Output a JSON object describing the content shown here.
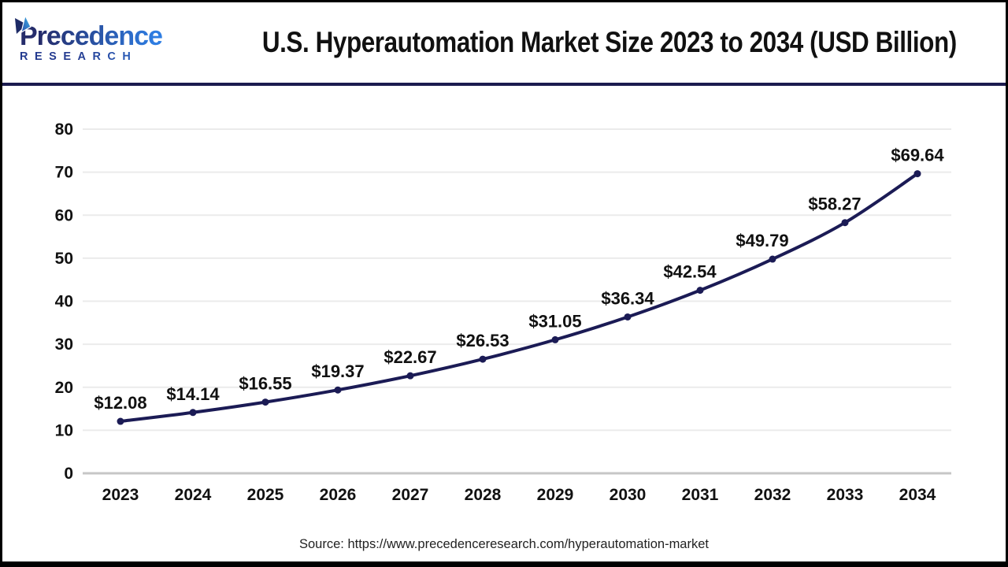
{
  "logo": {
    "brand": "Precedence",
    "subtitle": "RESEARCH"
  },
  "header": {
    "title": "U.S. Hyperautomation Market Size 2023 to 2034 (USD Billion)"
  },
  "source": {
    "text": "Source: https://www.precedenceresearch.com/hyperautomation-market"
  },
  "colors": {
    "line": "#1b1b55",
    "divider": "#1b1b4f",
    "grid": "#ebebeb",
    "axis": "#c6c6c6",
    "label": "#111111",
    "logo_gradient_start": "#252c6b",
    "logo_gradient_end": "#2e7de2"
  },
  "chart_data": {
    "type": "line",
    "title": "U.S. Hyperautomation Market Size 2023 to 2034 (USD Billion)",
    "unit": "USD Billion",
    "categories": [
      "2023",
      "2024",
      "2025",
      "2026",
      "2027",
      "2028",
      "2029",
      "2030",
      "2031",
      "2032",
      "2033",
      "2034"
    ],
    "values": [
      12.08,
      14.14,
      16.55,
      19.37,
      22.67,
      26.53,
      31.05,
      36.34,
      42.54,
      49.79,
      58.27,
      69.64
    ],
    "point_labels": [
      "$12.08",
      "$14.14",
      "$16.55",
      "$19.37",
      "$22.67",
      "$26.53",
      "$31.05",
      "$36.34",
      "$42.54",
      "$49.79",
      "$58.27",
      "$69.64"
    ],
    "xlabel": "",
    "ylabel": "",
    "ylim": [
      0,
      80
    ],
    "yticks": [
      0,
      10,
      20,
      30,
      40,
      50,
      60,
      70,
      80
    ],
    "grid": true,
    "legend_position": "none",
    "line_color": "#1b1b55",
    "marker": "circle"
  }
}
